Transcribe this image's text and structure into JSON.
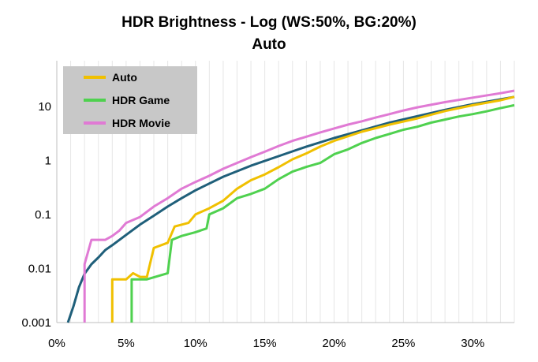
{
  "chart_data": {
    "type": "line",
    "title": "HDR Brightness - Log (WS:50%, BG:20%)",
    "subtitle": "Auto",
    "xlabel": "",
    "ylabel": "",
    "x_scale": "linear",
    "y_scale": "log",
    "xlim": [
      0,
      33
    ],
    "ylim": [
      0.001,
      50
    ],
    "x_ticks": [
      0,
      5,
      10,
      15,
      20,
      25,
      30
    ],
    "x_tick_labels": [
      "0%",
      "5%",
      "10%",
      "15%",
      "20%",
      "25%",
      "30%"
    ],
    "y_ticks": [
      0.001,
      0.01,
      0.1,
      1,
      10
    ],
    "y_tick_labels": [
      "0.001",
      "0.01",
      "0.1",
      "1",
      "10"
    ],
    "grid": "vertical minor gridlines every 1%",
    "legend": "top-left",
    "series": [
      {
        "name": "",
        "color": "#1f5f7a",
        "in_legend": false,
        "points": [
          [
            0.8,
            0.001
          ],
          [
            1.2,
            0.002
          ],
          [
            1.6,
            0.0045
          ],
          [
            2,
            0.008
          ],
          [
            2.5,
            0.012
          ],
          [
            3,
            0.016
          ],
          [
            3.5,
            0.022
          ],
          [
            4,
            0.027
          ],
          [
            5,
            0.042
          ],
          [
            6,
            0.065
          ],
          [
            7,
            0.095
          ],
          [
            8,
            0.14
          ],
          [
            9,
            0.2
          ],
          [
            10,
            0.28
          ],
          [
            12,
            0.5
          ],
          [
            14,
            0.8
          ],
          [
            16,
            1.2
          ],
          [
            18,
            1.8
          ],
          [
            20,
            2.6
          ],
          [
            22,
            3.6
          ],
          [
            24,
            5
          ],
          [
            26,
            6.6
          ],
          [
            28,
            8.6
          ],
          [
            30,
            11
          ],
          [
            32,
            13.5
          ],
          [
            33,
            15
          ]
        ]
      },
      {
        "name": "Auto",
        "color": "#f0c000",
        "in_legend": true,
        "points": [
          [
            4,
            0.001
          ],
          [
            4,
            0.0063
          ],
          [
            5,
            0.0063
          ],
          [
            5.5,
            0.0082
          ],
          [
            6,
            0.007
          ],
          [
            6.5,
            0.007
          ],
          [
            7,
            0.024
          ],
          [
            8,
            0.03
          ],
          [
            8.5,
            0.06
          ],
          [
            9.5,
            0.07
          ],
          [
            10,
            0.1
          ],
          [
            11,
            0.13
          ],
          [
            12,
            0.18
          ],
          [
            13,
            0.3
          ],
          [
            14,
            0.43
          ],
          [
            15,
            0.55
          ],
          [
            16,
            0.75
          ],
          [
            17,
            1.05
          ],
          [
            18,
            1.35
          ],
          [
            19,
            1.8
          ],
          [
            20,
            2.3
          ],
          [
            22,
            3.4
          ],
          [
            24,
            4.6
          ],
          [
            26,
            6
          ],
          [
            28,
            8.2
          ],
          [
            30,
            10.5
          ],
          [
            32,
            13
          ],
          [
            33,
            15
          ]
        ]
      },
      {
        "name": "HDR Game",
        "color": "#4fd14f",
        "in_legend": true,
        "points": [
          [
            5.4,
            0.001
          ],
          [
            5.4,
            0.0063
          ],
          [
            6.5,
            0.0063
          ],
          [
            8,
            0.0082
          ],
          [
            8.3,
            0.034
          ],
          [
            9,
            0.04
          ],
          [
            10,
            0.047
          ],
          [
            10.8,
            0.055
          ],
          [
            11,
            0.1
          ],
          [
            12,
            0.13
          ],
          [
            13,
            0.2
          ],
          [
            14,
            0.24
          ],
          [
            15,
            0.3
          ],
          [
            16,
            0.45
          ],
          [
            17,
            0.62
          ],
          [
            18,
            0.76
          ],
          [
            19,
            0.9
          ],
          [
            20,
            1.3
          ],
          [
            21,
            1.6
          ],
          [
            22,
            2.1
          ],
          [
            23,
            2.6
          ],
          [
            24,
            3.1
          ],
          [
            25,
            3.7
          ],
          [
            26,
            4.2
          ],
          [
            27,
            5
          ],
          [
            28,
            5.7
          ],
          [
            29,
            6.5
          ],
          [
            30,
            7.2
          ],
          [
            31,
            8.1
          ],
          [
            32,
            9.3
          ],
          [
            33,
            10.5
          ]
        ]
      },
      {
        "name": "HDR Movie",
        "color": "#e07ad4",
        "in_legend": true,
        "points": [
          [
            2,
            0.001
          ],
          [
            2,
            0.012
          ],
          [
            2.5,
            0.034
          ],
          [
            3.5,
            0.034
          ],
          [
            4,
            0.04
          ],
          [
            4.5,
            0.05
          ],
          [
            5,
            0.07
          ],
          [
            6,
            0.09
          ],
          [
            7,
            0.14
          ],
          [
            8,
            0.2
          ],
          [
            9,
            0.3
          ],
          [
            10,
            0.4
          ],
          [
            11,
            0.52
          ],
          [
            12,
            0.7
          ],
          [
            13,
            0.9
          ],
          [
            14,
            1.15
          ],
          [
            15,
            1.45
          ],
          [
            16,
            1.85
          ],
          [
            17,
            2.3
          ],
          [
            18,
            2.75
          ],
          [
            19,
            3.3
          ],
          [
            20,
            3.9
          ],
          [
            21,
            4.6
          ],
          [
            22,
            5.3
          ],
          [
            23,
            6.2
          ],
          [
            24,
            7.2
          ],
          [
            25,
            8.4
          ],
          [
            26,
            9.6
          ],
          [
            28,
            12
          ],
          [
            30,
            14.5
          ],
          [
            32,
            17.5
          ],
          [
            33,
            19.5
          ]
        ]
      }
    ]
  }
}
